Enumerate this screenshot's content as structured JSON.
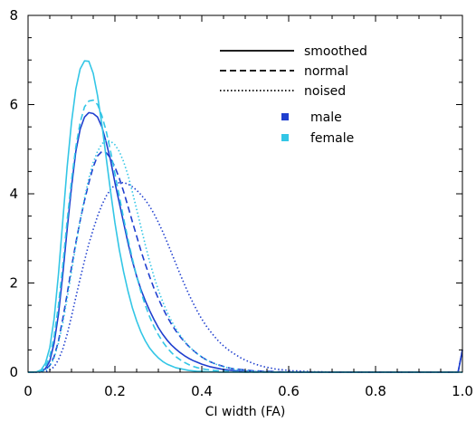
{
  "chart_data": {
    "type": "line",
    "title": "",
    "xlabel": "CI width (FA)",
    "ylabel": "",
    "xlim": [
      0,
      1.0
    ],
    "ylim": [
      0,
      8
    ],
    "x_ticks": [
      "0",
      "0.2",
      "0.4",
      "0.6",
      "0.8",
      "1.0"
    ],
    "y_ticks": [
      "0",
      "2",
      "4",
      "6",
      "8"
    ],
    "legend_position": "top-right",
    "legend_styles": [
      {
        "label": "smoothed",
        "dash": "solid"
      },
      {
        "label": "normal",
        "dash": "dashed"
      },
      {
        "label": "noised",
        "dash": "dotted"
      }
    ],
    "legend_colors": [
      {
        "label": "male",
        "color": "#1f3fcf"
      },
      {
        "label": "female",
        "color": "#33c6e6"
      }
    ],
    "x": [
      0.0,
      0.01,
      0.02,
      0.03,
      0.04,
      0.05,
      0.06,
      0.07,
      0.08,
      0.09,
      0.1,
      0.11,
      0.12,
      0.13,
      0.14,
      0.15,
      0.16,
      0.17,
      0.18,
      0.19,
      0.2,
      0.21,
      0.22,
      0.23,
      0.24,
      0.25,
      0.26,
      0.27,
      0.28,
      0.29,
      0.3,
      0.31,
      0.32,
      0.33,
      0.34,
      0.35,
      0.36,
      0.37,
      0.38,
      0.39,
      0.4,
      0.41,
      0.42,
      0.43,
      0.44,
      0.45,
      0.46,
      0.47,
      0.48,
      0.49,
      0.5,
      0.51,
      0.52,
      0.53,
      0.54,
      0.55,
      0.56,
      0.57,
      0.58,
      0.59,
      0.6,
      0.61,
      0.62,
      0.63,
      0.64,
      0.65,
      0.66,
      0.67,
      0.68,
      0.69,
      0.7,
      0.71,
      0.72,
      0.73,
      0.74,
      0.75,
      0.76,
      0.77,
      0.78,
      0.79,
      0.8,
      0.81,
      0.82,
      0.83,
      0.84,
      0.85,
      0.86,
      0.87,
      0.88,
      0.89,
      0.9,
      0.91,
      0.92,
      0.93,
      0.94,
      0.95,
      0.96,
      0.97,
      0.98,
      0.99,
      1.0
    ],
    "series": [
      {
        "name": "male smoothed",
        "color": "#1f3fcf",
        "dash": "solid",
        "values": [
          0.0,
          0.0,
          0.0,
          0.02,
          0.08,
          0.25,
          0.65,
          1.3,
          2.2,
          3.2,
          4.15,
          4.95,
          5.45,
          5.72,
          5.82,
          5.8,
          5.72,
          5.5,
          5.15,
          4.75,
          4.25,
          3.8,
          3.35,
          2.9,
          2.5,
          2.15,
          1.85,
          1.6,
          1.38,
          1.18,
          1.0,
          0.85,
          0.72,
          0.61,
          0.52,
          0.44,
          0.37,
          0.31,
          0.26,
          0.22,
          0.18,
          0.15,
          0.12,
          0.1,
          0.08,
          0.06,
          0.05,
          0.04,
          0.03,
          0.02,
          0.02,
          0.02,
          0.01,
          0.01,
          0.01,
          0.01,
          0.0,
          0.0,
          0.0,
          0.0,
          0.0,
          0.0,
          0.0,
          0.0,
          0.0,
          0.0,
          0.0,
          0.0,
          0.0,
          0.0,
          0.0,
          0.0,
          0.0,
          0.0,
          0.0,
          0.0,
          0.0,
          0.0,
          0.0,
          0.0,
          0.0,
          0.0,
          0.0,
          0.0,
          0.0,
          0.0,
          0.0,
          0.0,
          0.0,
          0.0,
          0.0,
          0.0,
          0.0,
          0.0,
          0.0,
          0.0,
          0.0,
          0.0,
          0.0,
          0.0,
          0.5
        ]
      },
      {
        "name": "male normal",
        "color": "#1f3fcf",
        "dash": "dashed",
        "values": [
          0.0,
          0.0,
          0.0,
          0.01,
          0.05,
          0.15,
          0.35,
          0.7,
          1.2,
          1.75,
          2.35,
          2.9,
          3.4,
          3.85,
          4.25,
          4.6,
          4.85,
          4.95,
          4.92,
          4.8,
          4.6,
          4.35,
          4.05,
          3.72,
          3.38,
          3.05,
          2.72,
          2.42,
          2.14,
          1.88,
          1.65,
          1.44,
          1.25,
          1.08,
          0.93,
          0.8,
          0.68,
          0.58,
          0.49,
          0.41,
          0.34,
          0.28,
          0.23,
          0.19,
          0.16,
          0.13,
          0.1,
          0.08,
          0.07,
          0.06,
          0.05,
          0.04,
          0.03,
          0.03,
          0.02,
          0.02,
          0.02,
          0.01,
          0.01,
          0.01,
          0.01,
          0.0,
          0.0,
          0.0,
          0.0,
          0.0,
          0.0,
          0.0,
          0.0,
          0.0,
          0.0,
          0.0,
          0.0,
          0.0,
          0.0,
          0.0,
          0.0,
          0.0,
          0.0,
          0.0,
          0.0,
          0.0,
          0.0,
          0.0,
          0.0,
          0.0,
          0.0,
          0.0,
          0.0,
          0.0,
          0.0,
          0.0,
          0.0,
          0.0,
          0.0,
          0.0,
          0.0,
          0.0,
          0.0,
          0.0,
          0.5
        ]
      },
      {
        "name": "male noised",
        "color": "#1f3fcf",
        "dash": "dotted",
        "values": [
          0.0,
          0.0,
          0.0,
          0.0,
          0.01,
          0.05,
          0.12,
          0.28,
          0.52,
          0.85,
          1.25,
          1.68,
          2.1,
          2.5,
          2.88,
          3.2,
          3.5,
          3.75,
          3.95,
          4.1,
          4.2,
          4.25,
          4.25,
          4.22,
          4.16,
          4.08,
          3.98,
          3.86,
          3.72,
          3.55,
          3.36,
          3.15,
          2.92,
          2.68,
          2.44,
          2.2,
          1.97,
          1.75,
          1.55,
          1.36,
          1.19,
          1.04,
          0.91,
          0.79,
          0.68,
          0.59,
          0.51,
          0.44,
          0.38,
          0.32,
          0.27,
          0.23,
          0.19,
          0.16,
          0.13,
          0.11,
          0.09,
          0.07,
          0.06,
          0.05,
          0.04,
          0.03,
          0.03,
          0.02,
          0.02,
          0.01,
          0.01,
          0.01,
          0.01,
          0.0,
          0.0,
          0.0,
          0.0,
          0.0,
          0.0,
          0.0,
          0.0,
          0.0,
          0.0,
          0.0,
          0.0,
          0.0,
          0.0,
          0.0,
          0.0,
          0.0,
          0.0,
          0.0,
          0.0,
          0.0,
          0.0,
          0.0,
          0.0,
          0.0,
          0.0,
          0.0,
          0.0,
          0.0,
          0.0,
          0.0,
          0.5
        ]
      },
      {
        "name": "female smoothed",
        "color": "#33c6e6",
        "dash": "solid",
        "values": [
          0.0,
          0.0,
          0.01,
          0.05,
          0.2,
          0.55,
          1.2,
          2.2,
          3.4,
          4.6,
          5.6,
          6.35,
          6.8,
          6.98,
          6.97,
          6.7,
          6.2,
          5.55,
          4.8,
          4.05,
          3.35,
          2.75,
          2.25,
          1.82,
          1.45,
          1.15,
          0.9,
          0.7,
          0.54,
          0.42,
          0.32,
          0.24,
          0.18,
          0.14,
          0.1,
          0.08,
          0.06,
          0.04,
          0.03,
          0.02,
          0.02,
          0.01,
          0.01,
          0.01,
          0.0,
          0.0,
          0.0,
          0.0,
          0.0,
          0.0,
          0.0,
          0.0,
          0.0,
          0.0,
          0.0,
          0.0,
          0.0,
          0.0,
          0.0,
          0.0,
          0.0,
          0.0,
          0.0,
          0.0,
          0.0,
          0.0,
          0.0,
          0.0,
          0.0,
          0.0,
          0.0,
          0.0,
          0.0,
          0.0,
          0.0,
          0.0,
          0.0,
          0.0,
          0.0,
          0.0,
          0.0,
          0.0,
          0.0,
          0.0,
          0.0,
          0.0,
          0.0,
          0.0,
          0.0,
          0.0,
          0.0,
          0.0,
          0.0,
          0.0,
          0.0,
          0.0,
          0.0,
          0.0,
          0.0,
          0.0,
          0.0
        ]
      },
      {
        "name": "female normal",
        "color": "#33c6e6",
        "dash": "dashed",
        "values": [
          0.0,
          0.0,
          0.0,
          0.03,
          0.12,
          0.35,
          0.8,
          1.5,
          2.4,
          3.4,
          4.3,
          5.05,
          5.6,
          5.95,
          6.08,
          6.1,
          6.0,
          5.75,
          5.4,
          4.95,
          4.45,
          3.95,
          3.45,
          2.98,
          2.55,
          2.15,
          1.8,
          1.5,
          1.24,
          1.02,
          0.84,
          0.68,
          0.55,
          0.44,
          0.35,
          0.28,
          0.22,
          0.17,
          0.13,
          0.1,
          0.08,
          0.06,
          0.05,
          0.04,
          0.03,
          0.02,
          0.02,
          0.01,
          0.01,
          0.01,
          0.0,
          0.0,
          0.0,
          0.0,
          0.0,
          0.0,
          0.0,
          0.0,
          0.0,
          0.0,
          0.0,
          0.0,
          0.0,
          0.0,
          0.0,
          0.0,
          0.0,
          0.0,
          0.0,
          0.0,
          0.0,
          0.0,
          0.0,
          0.0,
          0.0,
          0.0,
          0.0,
          0.0,
          0.0,
          0.0,
          0.0,
          0.0,
          0.0,
          0.0,
          0.0,
          0.0,
          0.0,
          0.0,
          0.0,
          0.0,
          0.0,
          0.0,
          0.0,
          0.0,
          0.0,
          0.0,
          0.0,
          0.0,
          0.0,
          0.0,
          0.0
        ]
      },
      {
        "name": "female noised",
        "color": "#33c6e6",
        "dash": "dotted",
        "values": [
          0.0,
          0.0,
          0.0,
          0.01,
          0.04,
          0.13,
          0.32,
          0.65,
          1.1,
          1.65,
          2.25,
          2.85,
          3.4,
          3.9,
          4.35,
          4.7,
          4.95,
          5.12,
          5.2,
          5.18,
          5.1,
          4.95,
          4.72,
          4.42,
          4.05,
          3.65,
          3.25,
          2.85,
          2.48,
          2.14,
          1.84,
          1.58,
          1.35,
          1.15,
          0.98,
          0.83,
          0.7,
          0.59,
          0.49,
          0.41,
          0.34,
          0.28,
          0.23,
          0.19,
          0.15,
          0.12,
          0.1,
          0.08,
          0.06,
          0.05,
          0.04,
          0.03,
          0.02,
          0.02,
          0.01,
          0.01,
          0.01,
          0.0,
          0.0,
          0.0,
          0.0,
          0.0,
          0.0,
          0.0,
          0.0,
          0.0,
          0.0,
          0.0,
          0.0,
          0.0,
          0.0,
          0.0,
          0.0,
          0.0,
          0.0,
          0.0,
          0.0,
          0.0,
          0.0,
          0.0,
          0.0,
          0.0,
          0.0,
          0.0,
          0.0,
          0.0,
          0.0,
          0.0,
          0.0,
          0.0,
          0.0,
          0.0,
          0.0,
          0.0,
          0.0,
          0.0,
          0.0,
          0.0,
          0.0,
          0.0,
          0.0
        ]
      }
    ]
  }
}
